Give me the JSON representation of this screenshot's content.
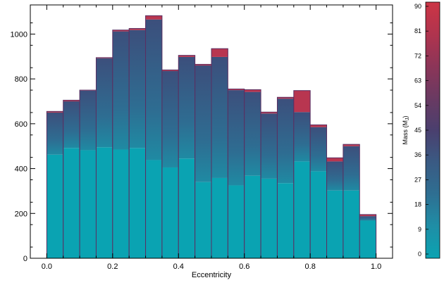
{
  "chart_data": {
    "type": "bar",
    "subtype": "stacked-histogram-colormap",
    "xlabel": "Eccentricity",
    "ylabel": "",
    "xlim": [
      -0.05,
      1.05
    ],
    "ylim": [
      0,
      1130
    ],
    "xticks": [
      0.0,
      0.2,
      0.4,
      0.6,
      0.8,
      1.0
    ],
    "xtick_labels": [
      "0.0",
      "0.2",
      "0.4",
      "0.6",
      "0.8",
      "1.0"
    ],
    "yticks": [
      0,
      200,
      400,
      600,
      800,
      1000
    ],
    "ytick_labels": [
      "0",
      "200",
      "400",
      "600",
      "800",
      "1000"
    ],
    "bin_width": 0.05,
    "bin_starts": [
      0.0,
      0.05,
      0.1,
      0.15,
      0.2,
      0.25,
      0.3,
      0.35,
      0.4,
      0.45,
      0.5,
      0.55,
      0.6,
      0.65,
      0.7,
      0.75,
      0.8,
      0.85,
      0.9,
      0.95
    ],
    "totals": [
      655,
      705,
      750,
      895,
      1018,
      1025,
      1082,
      840,
      905,
      865,
      935,
      755,
      752,
      652,
      718,
      748,
      595,
      448,
      508,
      195
    ],
    "teal_values": [
      462,
      492,
      482,
      495,
      485,
      492,
      438,
      405,
      445,
      340,
      358,
      325,
      368,
      355,
      335,
      432,
      388,
      302,
      302,
      168
    ],
    "mid_values": [
      650,
      700,
      748,
      892,
      1012,
      1018,
      1065,
      835,
      898,
      860,
      898,
      750,
      742,
      646,
      712,
      652,
      585,
      432,
      500,
      188
    ],
    "colorbar": {
      "label": "Mass (M",
      "label_sub": "J",
      "label_close": ")",
      "ticks": [
        "0",
        "9",
        "18",
        "27",
        "36",
        "45",
        "54",
        "63",
        "72",
        "81",
        "90"
      ],
      "range": [
        0,
        90
      ],
      "colors": [
        "#0aa3b2",
        "#1f8ea6",
        "#2e6f92",
        "#3a5a83",
        "#4a3f6e",
        "#6a3a62",
        "#8c3558",
        "#b0344e",
        "#cc3545"
      ]
    }
  }
}
